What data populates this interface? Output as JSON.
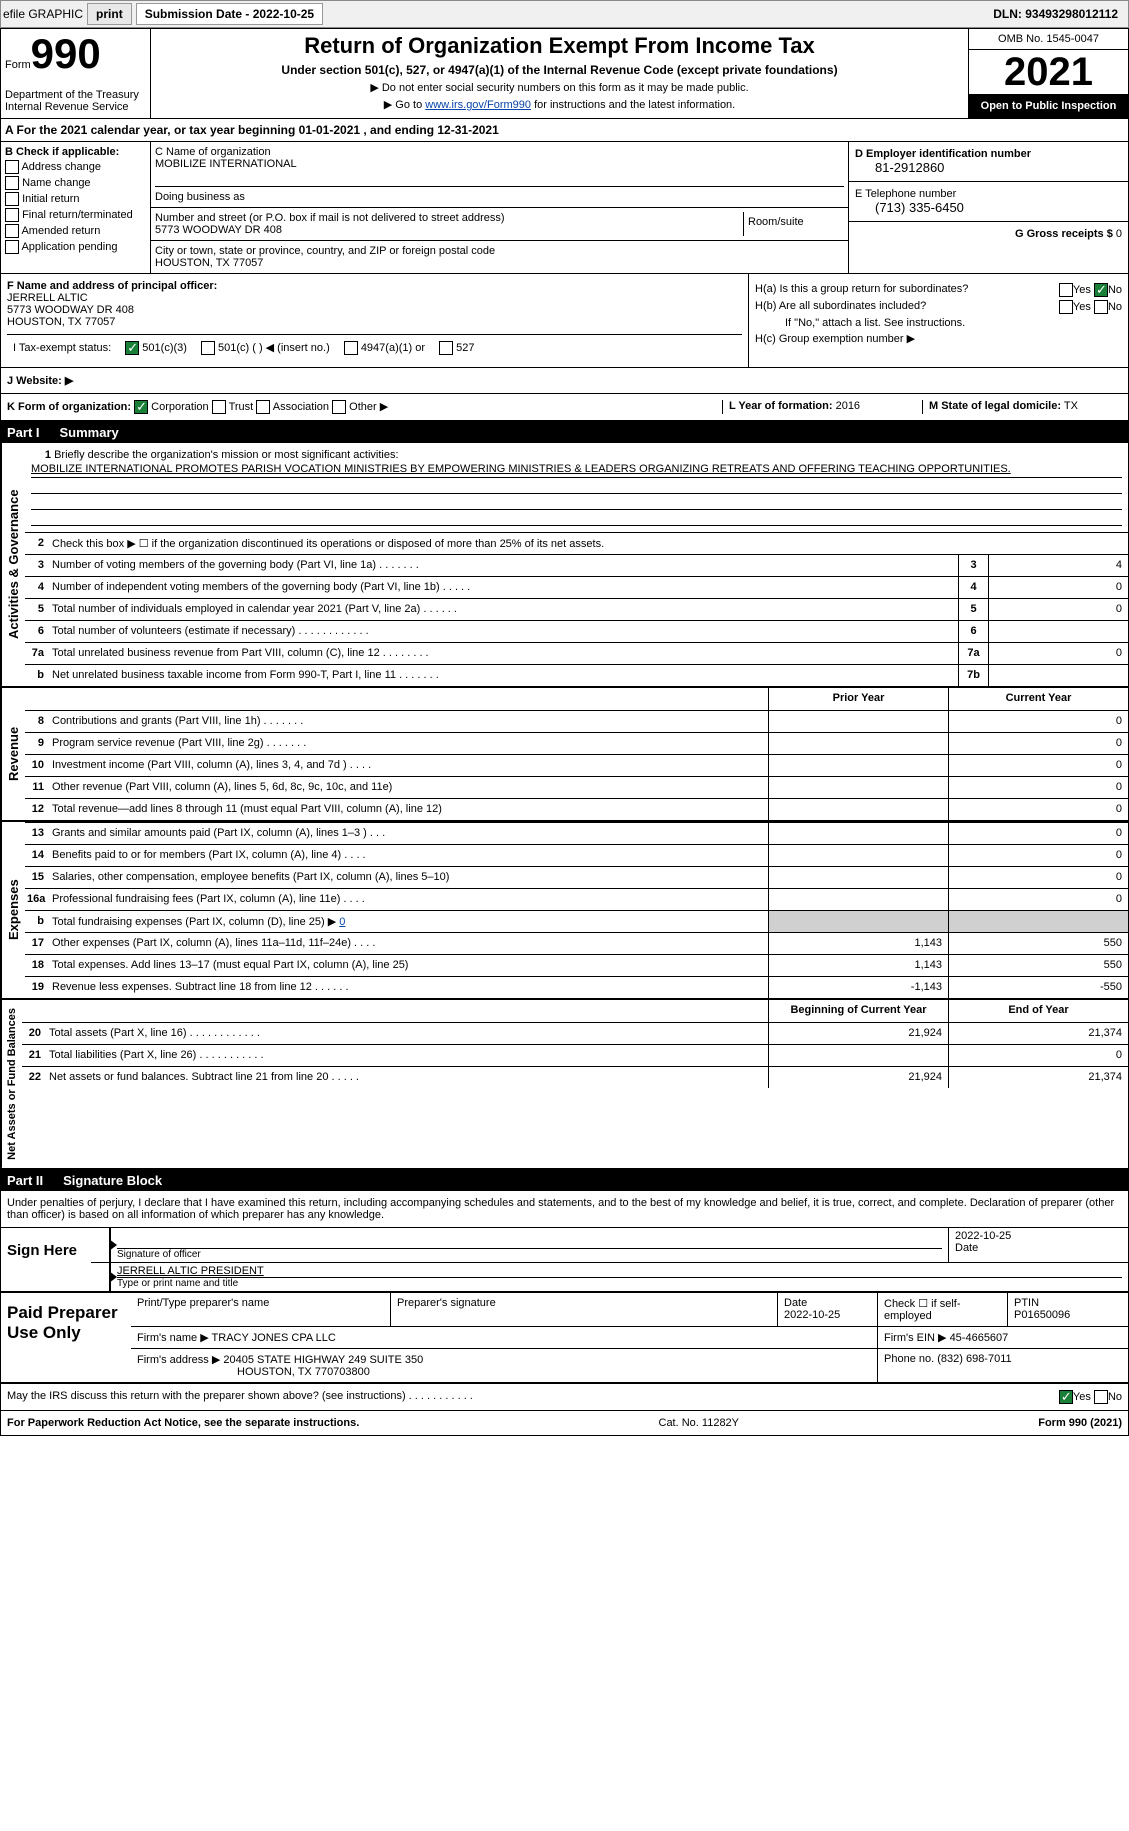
{
  "topbar": {
    "efile_label": "efile GRAPHIC",
    "print_btn": "print",
    "submission_label": "Submission Date - 2022-10-25",
    "dln": "DLN: 93493298012112"
  },
  "header": {
    "form_label": "Form",
    "form_number": "990",
    "dept": "Department of the Treasury",
    "irs": "Internal Revenue Service",
    "title": "Return of Organization Exempt From Income Tax",
    "subtitle": "Under section 501(c), 527, or 4947(a)(1) of the Internal Revenue Code (except private foundations)",
    "note1": "▶ Do not enter social security numbers on this form as it may be made public.",
    "note2_pre": "▶ Go to ",
    "note2_link": "www.irs.gov/Form990",
    "note2_post": " for instructions and the latest information.",
    "omb": "OMB No. 1545-0047",
    "year": "2021",
    "open_public": "Open to Public Inspection"
  },
  "row_a": {
    "text": "A For the 2021 calendar year, or tax year beginning 01-01-2021    , and ending 12-31-2021"
  },
  "col_b": {
    "label": "B Check if applicable:",
    "items": [
      "Address change",
      "Name change",
      "Initial return",
      "Final return/terminated",
      "Amended return",
      "Application pending"
    ]
  },
  "col_c": {
    "name_label": "C Name of organization",
    "name_val": "MOBILIZE INTERNATIONAL",
    "dba_label": "Doing business as",
    "street_label": "Number and street (or P.O. box if mail is not delivered to street address)",
    "street_val": "5773 WOODWAY DR 408",
    "room_label": "Room/suite",
    "city_label": "City or town, state or province, country, and ZIP or foreign postal code",
    "city_val": "HOUSTON, TX  77057"
  },
  "col_d": {
    "ein_label": "D Employer identification number",
    "ein_val": "81-2912860",
    "phone_label": "E Telephone number",
    "phone_val": "(713) 335-6450",
    "gross_label": "G Gross receipts $",
    "gross_val": "0"
  },
  "section_f": {
    "label": "F Name and address of principal officer:",
    "name": "JERRELL ALTIC",
    "street": "5773 WOODWAY DR 408",
    "city": "HOUSTON, TX  77057"
  },
  "section_h": {
    "ha_label": "H(a)  Is this a group return for subordinates?",
    "hb_label": "H(b)  Are all subordinates included?",
    "hb_note": "If \"No,\" attach a list. See instructions.",
    "hc_label": "H(c)  Group exemption number ▶",
    "yes": "Yes",
    "no": "No"
  },
  "row_i": {
    "label": "I   Tax-exempt status:",
    "opt1": "501(c)(3)",
    "opt2": "501(c) (   ) ◀ (insert no.)",
    "opt3": "4947(a)(1) or",
    "opt4": "527"
  },
  "row_j": {
    "label": "J   Website: ▶"
  },
  "row_k": {
    "label": "K Form of organization:",
    "corp": "Corporation",
    "trust": "Trust",
    "assoc": "Association",
    "other": "Other ▶",
    "l_label": "L Year of formation:",
    "l_val": "2016",
    "m_label": "M State of legal domicile:",
    "m_val": "TX"
  },
  "part1": {
    "num": "Part I",
    "title": "Summary",
    "vtab_activities": "Activities & Governance",
    "vtab_revenue": "Revenue",
    "vtab_expenses": "Expenses",
    "vtab_netassets": "Net Assets or Fund Balances",
    "line1_label": "Briefly describe the organization's mission or most significant activities:",
    "line1_val": "MOBILIZE INTERNATIONAL PROMOTES PARISH VOCATION MINISTRIES BY EMPOWERING MINISTRIES & LEADERS ORGANIZING RETREATS AND OFFERING TEACHING OPPORTUNITIES.",
    "line2": "Check this box ▶ ☐ if the organization discontinued its operations or disposed of more than 25% of its net assets.",
    "prior_year": "Prior Year",
    "current_year": "Current Year",
    "beg_year": "Beginning of Current Year",
    "end_year": "End of Year",
    "lines_ag": [
      {
        "n": "3",
        "d": "Number of voting members of the governing body (Part VI, line 1a)   .    .    .    .    .    .    .",
        "ref": "3",
        "v": "4"
      },
      {
        "n": "4",
        "d": "Number of independent voting members of the governing body (Part VI, line 1b)   .    .    .    .    .",
        "ref": "4",
        "v": "0"
      },
      {
        "n": "5",
        "d": "Total number of individuals employed in calendar year 2021 (Part V, line 2a)   .    .    .    .    .    .",
        "ref": "5",
        "v": "0"
      },
      {
        "n": "6",
        "d": "Total number of volunteers (estimate if necessary)    .    .    .    .    .    .    .    .    .    .    .    .",
        "ref": "6",
        "v": ""
      },
      {
        "n": "7a",
        "d": "Total unrelated business revenue from Part VIII, column (C), line 12   .    .    .    .    .    .    .    .",
        "ref": "7a",
        "v": "0"
      },
      {
        "n": "b",
        "d": "Net unrelated business taxable income from Form 990-T, Part I, line 11   .    .    .    .    .    .    .",
        "ref": "7b",
        "v": ""
      }
    ],
    "lines_rev": [
      {
        "n": "8",
        "d": "Contributions and grants (Part VIII, line 1h)   .    .    .    .    .    .    .",
        "p": "",
        "c": "0"
      },
      {
        "n": "9",
        "d": "Program service revenue (Part VIII, line 2g)   .    .    .    .    .    .    .",
        "p": "",
        "c": "0"
      },
      {
        "n": "10",
        "d": "Investment income (Part VIII, column (A), lines 3, 4, and 7d )   .    .    .    .",
        "p": "",
        "c": "0"
      },
      {
        "n": "11",
        "d": "Other revenue (Part VIII, column (A), lines 5, 6d, 8c, 9c, 10c, and 11e)",
        "p": "",
        "c": "0"
      },
      {
        "n": "12",
        "d": "Total revenue—add lines 8 through 11 (must equal Part VIII, column (A), line 12)",
        "p": "",
        "c": "0"
      }
    ],
    "lines_exp": [
      {
        "n": "13",
        "d": "Grants and similar amounts paid (Part IX, column (A), lines 1–3 )   .    .    .",
        "p": "",
        "c": "0"
      },
      {
        "n": "14",
        "d": "Benefits paid to or for members (Part IX, column (A), line 4)   .    .    .    .",
        "p": "",
        "c": "0"
      },
      {
        "n": "15",
        "d": "Salaries, other compensation, employee benefits (Part IX, column (A), lines 5–10)",
        "p": "",
        "c": "0"
      },
      {
        "n": "16a",
        "d": "Professional fundraising fees (Part IX, column (A), line 11e)   .    .    .    .",
        "p": "",
        "c": "0"
      },
      {
        "n": "b",
        "d": "Total fundraising expenses (Part IX, column (D), line 25) ▶",
        "p": "shade",
        "c": "shade",
        "link": "0"
      },
      {
        "n": "17",
        "d": "Other expenses (Part IX, column (A), lines 11a–11d, 11f–24e)   .    .    .    .",
        "p": "1,143",
        "c": "550"
      },
      {
        "n": "18",
        "d": "Total expenses. Add lines 13–17 (must equal Part IX, column (A), line 25)",
        "p": "1,143",
        "c": "550"
      },
      {
        "n": "19",
        "d": "Revenue less expenses. Subtract line 18 from line 12   .    .    .    .    .    .",
        "p": "-1,143",
        "c": "-550"
      }
    ],
    "lines_net": [
      {
        "n": "20",
        "d": "Total assets (Part X, line 16)   .    .    .    .    .    .    .    .    .    .    .    .",
        "p": "21,924",
        "c": "21,374"
      },
      {
        "n": "21",
        "d": "Total liabilities (Part X, line 26)   .    .    .    .    .    .    .    .    .    .    .",
        "p": "",
        "c": "0"
      },
      {
        "n": "22",
        "d": "Net assets or fund balances. Subtract line 21 from line 20   .    .    .    .    .",
        "p": "21,924",
        "c": "21,374"
      }
    ]
  },
  "part2": {
    "num": "Part II",
    "title": "Signature Block",
    "decl": "Under penalties of perjury, I declare that I have examined this return, including accompanying schedules and statements, and to the best of my knowledge and belief, it is true, correct, and complete. Declaration of preparer (other than officer) is based on all information of which preparer has any knowledge."
  },
  "sign": {
    "label": "Sign Here",
    "sig_label": "Signature of officer",
    "date_val": "2022-10-25",
    "date_label": "Date",
    "name_val": "JERRELL ALTIC  PRESIDENT",
    "name_label": "Type or print name and title"
  },
  "paid": {
    "label": "Paid Preparer Use Only",
    "col_name": "Print/Type preparer's name",
    "col_sig": "Preparer's signature",
    "col_date_label": "Date",
    "col_date_val": "2022-10-25",
    "col_check": "Check ☐ if self-employed",
    "col_ptin_label": "PTIN",
    "col_ptin_val": "P01650096",
    "firm_name_label": "Firm's name     ▶",
    "firm_name_val": "TRACY JONES CPA LLC",
    "firm_ein_label": "Firm's EIN ▶",
    "firm_ein_val": "45-4665607",
    "firm_addr_label": "Firm's address ▶",
    "firm_addr_val1": "20405 STATE HIGHWAY 249 SUITE 350",
    "firm_addr_val2": "HOUSTON, TX  770703800",
    "firm_phone_label": "Phone no.",
    "firm_phone_val": "(832) 698-7011"
  },
  "discuss": {
    "text": "May the IRS discuss this return with the preparer shown above? (see instructions)   .    .    .    .    .    .    .    .    .    .    .",
    "yes": "Yes",
    "no": "No"
  },
  "footer": {
    "left": "For Paperwork Reduction Act Notice, see the separate instructions.",
    "mid": "Cat. No. 11282Y",
    "right": "Form 990 (2021)"
  }
}
